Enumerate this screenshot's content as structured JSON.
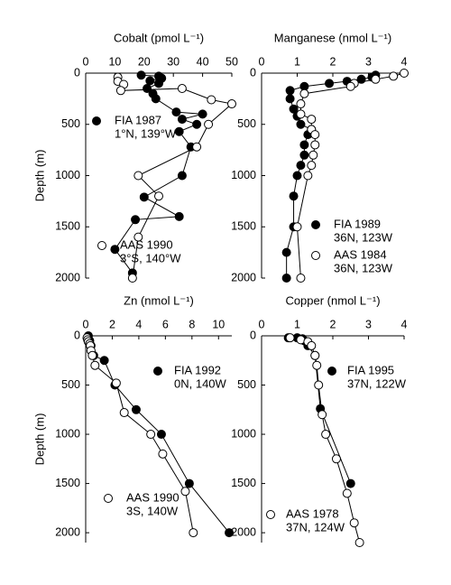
{
  "chart_data": [
    {
      "type": "line",
      "title": "Cobalt (pmol L⁻¹)",
      "y_label": "Depth (m)",
      "xlim": [
        0,
        50
      ],
      "xticks": [
        0,
        10,
        20,
        30,
        40,
        50
      ],
      "ylim": [
        0,
        2000
      ],
      "yticks": [
        0,
        500,
        1000,
        1500,
        2000
      ],
      "series": [
        {
          "name": "FIA 1987",
          "location": "1°N, 139°W",
          "marker": "filled",
          "x": [
            19,
            25,
            26,
            22,
            25,
            21,
            23,
            24,
            31,
            40,
            33,
            38,
            32,
            36,
            33,
            20,
            32,
            17,
            10,
            16
          ],
          "y": [
            20,
            30,
            50,
            75,
            100,
            150,
            200,
            250,
            380,
            400,
            450,
            500,
            570,
            720,
            1000,
            1210,
            1400,
            1430,
            1720,
            1950
          ]
        },
        {
          "name": "AAS 1990",
          "location": "3°S, 140°W",
          "marker": "open",
          "x": [
            11,
            11,
            13,
            12,
            33,
            43,
            50,
            42,
            38,
            18,
            25,
            18,
            16
          ],
          "y": [
            40,
            80,
            110,
            170,
            150,
            260,
            300,
            500,
            720,
            1000,
            1200,
            1600,
            2000
          ]
        }
      ]
    },
    {
      "type": "line",
      "title": "Manganese (nmol L⁻¹)",
      "xlim": [
        0,
        4
      ],
      "xticks": [
        0,
        1,
        2,
        3,
        4
      ],
      "ylim": [
        0,
        2000
      ],
      "yticks": [
        0,
        500,
        1000,
        1500,
        2000
      ],
      "series": [
        {
          "name": "FIA 1989",
          "location": "36N, 123W",
          "marker": "filled",
          "x": [
            3.2,
            3.1,
            2.8,
            2.4,
            1.9,
            1.2,
            0.8,
            0.8,
            0.9,
            1.0,
            1.1,
            1.4,
            1.3,
            1.2,
            1.2,
            1.1,
            1.0,
            0.9,
            0.9,
            0.7,
            0.7
          ],
          "y": [
            20,
            40,
            60,
            80,
            100,
            130,
            170,
            250,
            350,
            420,
            500,
            550,
            600,
            700,
            800,
            900,
            1000,
            1200,
            1500,
            1750,
            2000
          ]
        },
        {
          "name": "AAS 1984",
          "location": "36N, 123W",
          "marker": "open",
          "x": [
            4.0,
            3.7,
            3.2,
            2.6,
            2.5,
            1.2,
            1.1,
            1.1,
            1.4,
            1.4,
            1.5,
            1.5,
            1.45,
            1.4,
            1.3,
            1.0,
            1.1
          ],
          "y": [
            0,
            30,
            60,
            100,
            130,
            200,
            300,
            400,
            450,
            550,
            600,
            700,
            800,
            900,
            1000,
            1500,
            2000
          ]
        }
      ]
    },
    {
      "type": "line",
      "title": "Zn (nmol L⁻¹)",
      "y_label": "Depth (m)",
      "xlim": [
        0,
        11
      ],
      "xticks": [
        0,
        2,
        4,
        6,
        8,
        10
      ],
      "ylim": [
        0,
        2100
      ],
      "yticks": [
        0,
        500,
        1000,
        1500,
        2000
      ],
      "series": [
        {
          "name": "FIA 1992",
          "location": "0N, 140W",
          "marker": "filled",
          "x": [
            0.2,
            0.3,
            0.4,
            0.6,
            1.4,
            2.2,
            3.8,
            5.7,
            7.8,
            10.8
          ],
          "y": [
            0,
            50,
            100,
            200,
            250,
            500,
            750,
            1000,
            1500,
            2000
          ]
        },
        {
          "name": "AAS 1990",
          "location": "3S, 140W",
          "marker": "open",
          "x": [
            0.1,
            0.15,
            0.2,
            0.3,
            0.35,
            0.4,
            0.5,
            0.7,
            2.3,
            2.9,
            4.9,
            5.8,
            7.5,
            8.1
          ],
          "y": [
            20,
            40,
            60,
            80,
            100,
            150,
            200,
            300,
            480,
            780,
            1000,
            1200,
            1580,
            2000
          ]
        }
      ]
    },
    {
      "type": "line",
      "title": "Copper (nmol L⁻¹)",
      "xlim": [
        0,
        4
      ],
      "xticks": [
        0,
        1,
        2,
        3,
        4
      ],
      "ylim": [
        0,
        2100
      ],
      "yticks": [
        0,
        500,
        1000,
        1500,
        2000
      ],
      "series": [
        {
          "name": "FIA 1995",
          "location": "37N, 122W",
          "marker": "filled",
          "x": [
            0.75,
            1.0,
            1.15,
            1.2,
            1.3,
            1.5,
            1.65,
            2.5
          ],
          "y": [
            20,
            20,
            30,
            50,
            100,
            200,
            740,
            1500
          ]
        },
        {
          "name": "AAS 1978",
          "location": "37N, 124W",
          "marker": "open",
          "x": [
            0.8,
            1.1,
            1.3,
            1.4,
            1.5,
            1.55,
            1.6,
            1.7,
            1.8,
            2.1,
            2.4,
            2.6,
            2.75
          ],
          "y": [
            20,
            40,
            60,
            100,
            200,
            300,
            500,
            800,
            1000,
            1250,
            1600,
            1900,
            2100
          ]
        }
      ]
    }
  ]
}
